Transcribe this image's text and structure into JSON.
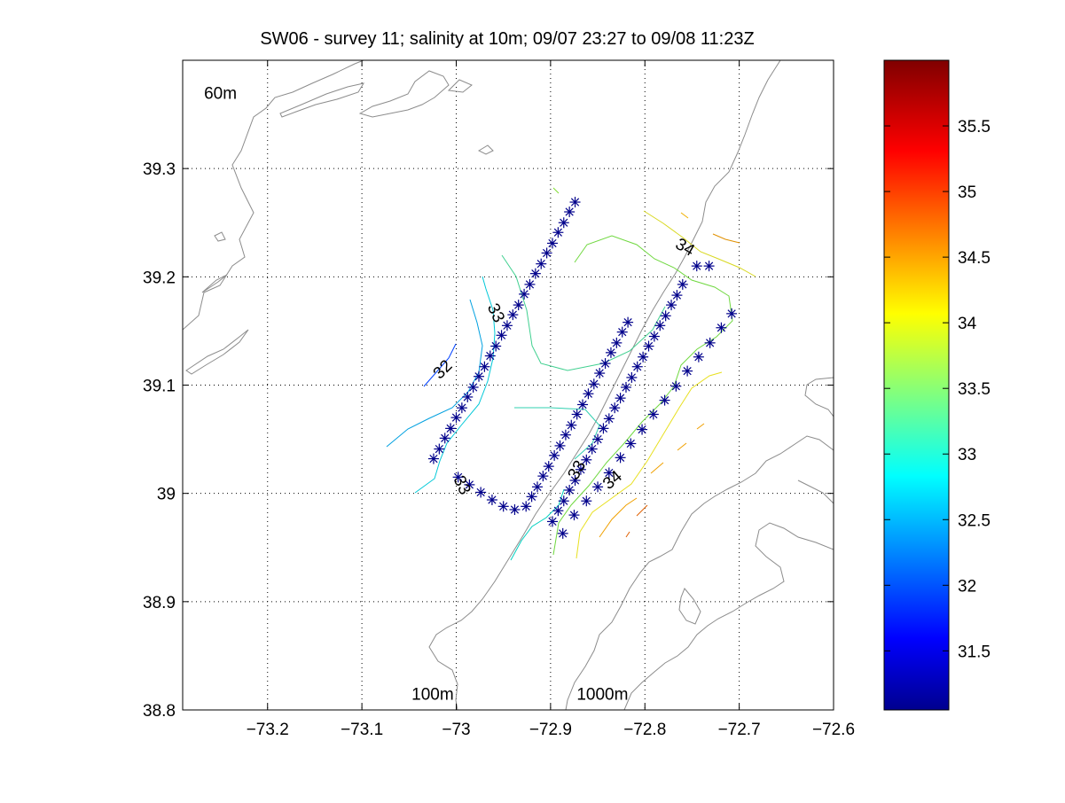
{
  "chart_data": {
    "type": "scatter",
    "title": "SW06 - survey 11; salinity at 10m; 09/07 23:27 to 09/08 11:23Z",
    "xlabel": "",
    "ylabel": "",
    "xlim": [
      -73.29,
      -72.6
    ],
    "ylim": [
      38.8,
      39.4
    ],
    "xticks": [
      -73.2,
      -73.1,
      -73.0,
      -72.9,
      -72.8,
      -72.7,
      -72.6
    ],
    "xtick_labels": [
      "−73.2",
      "−73.1",
      "−73",
      "−72.9",
      "−72.8",
      "−72.7",
      "−72.6"
    ],
    "yticks": [
      38.8,
      38.9,
      39.0,
      39.1,
      39.2,
      39.3
    ],
    "ytick_labels": [
      "38.8",
      "38.9",
      "39",
      "39.1",
      "39.2",
      "39.3"
    ],
    "grid": true,
    "colorbar": {
      "min": 31.05,
      "max": 36.0,
      "ticks": [
        31.5,
        32,
        32.5,
        33,
        33.5,
        34,
        34.5,
        35,
        35.5
      ],
      "tick_labels": [
        "31.5",
        "32",
        "32.5",
        "33",
        "33.5",
        "34",
        "34.5",
        "35",
        "35.5"
      ]
    },
    "depth_labels": [
      {
        "text": "60m",
        "x": -73.25,
        "y": 39.37
      },
      {
        "text": "100m",
        "x": -73.025,
        "y": 38.815
      },
      {
        "text": "1000m",
        "x": -72.845,
        "y": 38.815
      }
    ],
    "contour_labels": [
      {
        "text": "32",
        "x": -73.015,
        "y": 39.115,
        "angle": -45
      },
      {
        "text": "33",
        "x": -72.957,
        "y": 39.167,
        "angle": 65
      },
      {
        "text": "33",
        "x": -72.993,
        "y": 39.008,
        "angle": 65
      },
      {
        "text": "33",
        "x": -72.873,
        "y": 39.022,
        "angle": -60
      },
      {
        "text": "34",
        "x": -72.835,
        "y": 39.013,
        "angle": -40
      },
      {
        "text": "34",
        "x": -72.757,
        "y": 39.228,
        "angle": 30
      }
    ],
    "series": [
      {
        "marker": "asterisk",
        "color": "#00008b",
        "x": [
          -73.024,
          -73.018,
          -73.012,
          -73.006,
          -73.0,
          -72.994,
          -72.988,
          -72.982,
          -72.976,
          -72.97,
          -72.964,
          -72.958,
          -72.952,
          -72.946,
          -72.94,
          -72.934,
          -72.928,
          -72.922,
          -72.916,
          -72.91,
          -72.904,
          -72.898,
          -72.892,
          -72.886,
          -72.88,
          -72.874,
          -72.998,
          -72.986,
          -72.974,
          -72.962,
          -72.95,
          -72.938,
          -72.926,
          -72.92,
          -72.914,
          -72.908,
          -72.902,
          -72.896,
          -72.89,
          -72.884,
          -72.878,
          -72.872,
          -72.866,
          -72.86,
          -72.854,
          -72.848,
          -72.842,
          -72.836,
          -72.83,
          -72.824,
          -72.818,
          -72.898,
          -72.892,
          -72.886,
          -72.88,
          -72.874,
          -72.868,
          -72.862,
          -72.856,
          -72.85,
          -72.844,
          -72.838,
          -72.832,
          -72.826,
          -72.82,
          -72.814,
          -72.808,
          -72.802,
          -72.796,
          -72.79,
          -72.784,
          -72.778,
          -72.772,
          -72.766,
          -72.76,
          -72.887,
          -72.875,
          -72.862,
          -72.85,
          -72.838,
          -72.826,
          -72.815,
          -72.803,
          -72.791,
          -72.779,
          -72.767,
          -72.755,
          -72.743,
          -72.731,
          -72.719,
          -72.708,
          -72.732,
          -72.745
        ],
        "y": [
          39.032,
          39.041,
          39.051,
          39.06,
          39.07,
          39.079,
          39.089,
          39.098,
          39.108,
          39.117,
          39.127,
          39.136,
          39.146,
          39.155,
          39.165,
          39.174,
          39.184,
          39.193,
          39.203,
          39.212,
          39.222,
          39.231,
          39.241,
          39.25,
          39.26,
          39.269,
          39.015,
          39.008,
          39.001,
          38.994,
          38.988,
          38.985,
          38.988,
          38.997,
          39.006,
          39.016,
          39.025,
          39.035,
          39.044,
          39.054,
          39.063,
          39.073,
          39.082,
          39.092,
          39.101,
          39.111,
          39.12,
          39.13,
          39.139,
          39.149,
          39.158,
          38.974,
          38.984,
          38.993,
          39.003,
          39.012,
          39.022,
          39.031,
          39.041,
          39.05,
          39.06,
          39.069,
          39.079,
          39.088,
          39.098,
          39.107,
          39.117,
          39.126,
          39.136,
          39.145,
          39.155,
          39.164,
          39.174,
          39.183,
          39.193,
          38.963,
          38.98,
          38.993,
          39.006,
          39.019,
          39.033,
          39.046,
          39.059,
          39.073,
          39.086,
          39.099,
          39.113,
          39.126,
          39.139,
          39.153,
          39.166,
          39.21,
          39.21
        ]
      }
    ]
  }
}
